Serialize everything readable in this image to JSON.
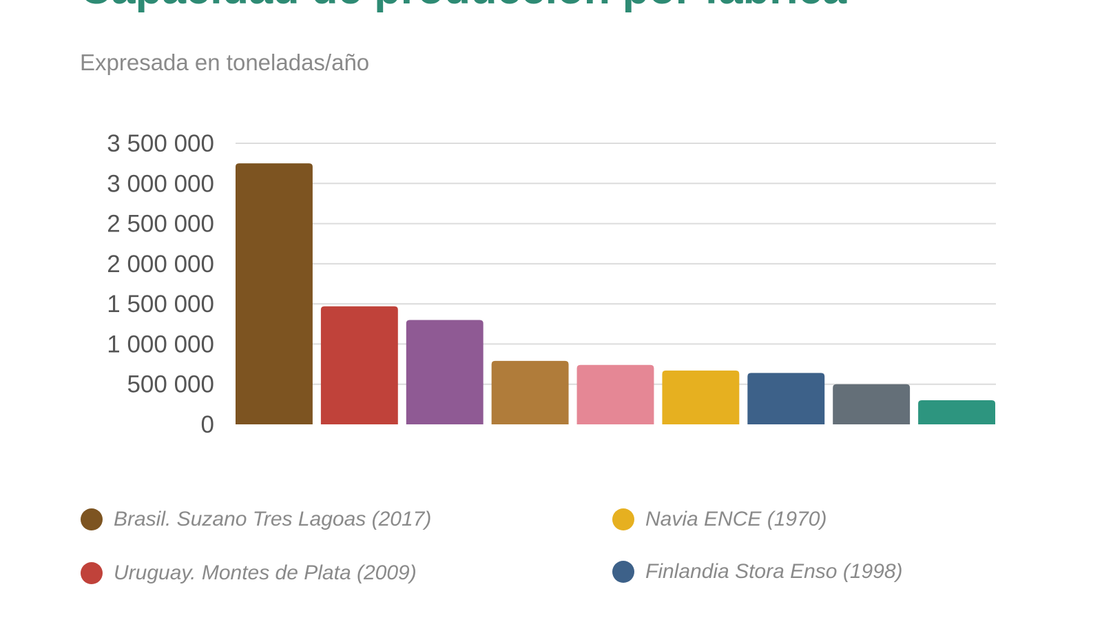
{
  "chart_data": {
    "type": "bar",
    "title": "Capacidad de producción por fábrica",
    "subtitle": "Expresada en toneladas/año",
    "xlabel": "",
    "ylabel": "",
    "ylim": [
      0,
      3500000
    ],
    "yticks": [
      0,
      500000,
      1000000,
      1500000,
      2000000,
      2500000,
      3000000,
      3500000
    ],
    "ytick_labels": [
      "0",
      "500 000",
      "1 000 000",
      "1 500 000",
      "2 000 000",
      "2 500 000",
      "3 000 000",
      "3 500 000"
    ],
    "grid": true,
    "values": [
      3250000,
      1470000,
      1300000,
      790000,
      740000,
      670000,
      640000,
      500000,
      300000
    ],
    "colors": [
      "#7d5421",
      "#c0423a",
      "#8f5a94",
      "#b07c3a",
      "#e58795",
      "#e6b020",
      "#3d6189",
      "#646f78",
      "#2d957f"
    ],
    "legend_position": "bottom",
    "legend": [
      {
        "label": "Brasil. Suzano Tres Lagoas (2017)",
        "color": "#7d5421"
      },
      {
        "label": "Uruguay. Montes de Plata (2009)",
        "color": "#c0423a"
      },
      {
        "label": "Navia ENCE (1970)",
        "color": "#e6b020"
      },
      {
        "label": "Finlandia Stora Enso (1998)",
        "color": "#3d6189"
      }
    ]
  }
}
